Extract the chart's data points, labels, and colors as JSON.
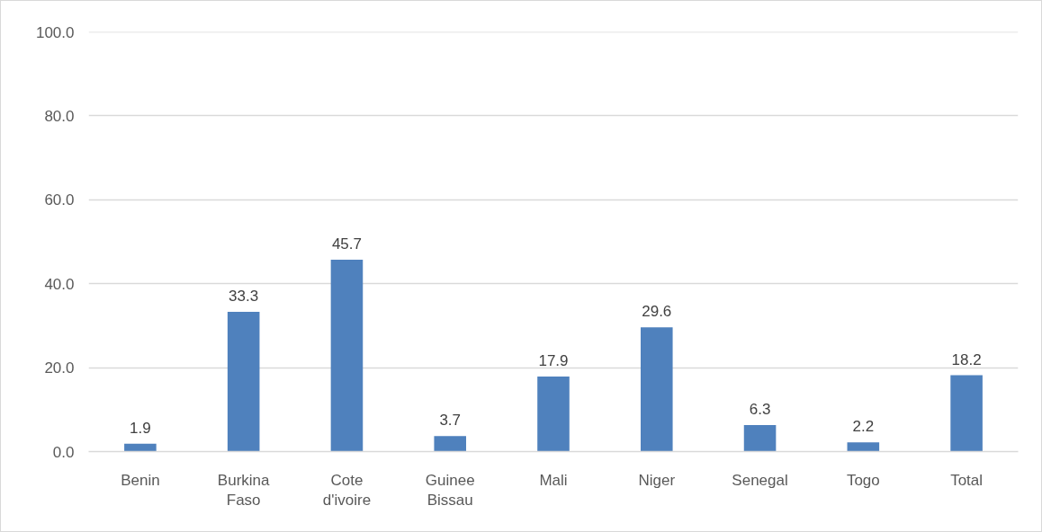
{
  "chart_data": {
    "type": "bar",
    "categories": [
      "Benin",
      "Burkina Faso",
      "Cote d'ivoire",
      "Guinee Bissau",
      "Mali",
      "Niger",
      "Senegal",
      "Togo",
      "Total"
    ],
    "values": [
      1.9,
      33.3,
      45.7,
      3.7,
      17.9,
      29.6,
      6.3,
      2.2,
      18.2
    ],
    "color": "#4f81bd",
    "ylim": [
      0,
      100
    ],
    "yticks": [
      {
        "value": 0,
        "label": "0.0"
      },
      {
        "value": 20,
        "label": "20.0"
      },
      {
        "value": 40,
        "label": "40.0"
      },
      {
        "value": 60,
        "label": "60.0"
      },
      {
        "value": 80,
        "label": "80.0"
      },
      {
        "value": 100,
        "label": "100.0"
      }
    ],
    "grid": "y",
    "data_labels": true
  }
}
